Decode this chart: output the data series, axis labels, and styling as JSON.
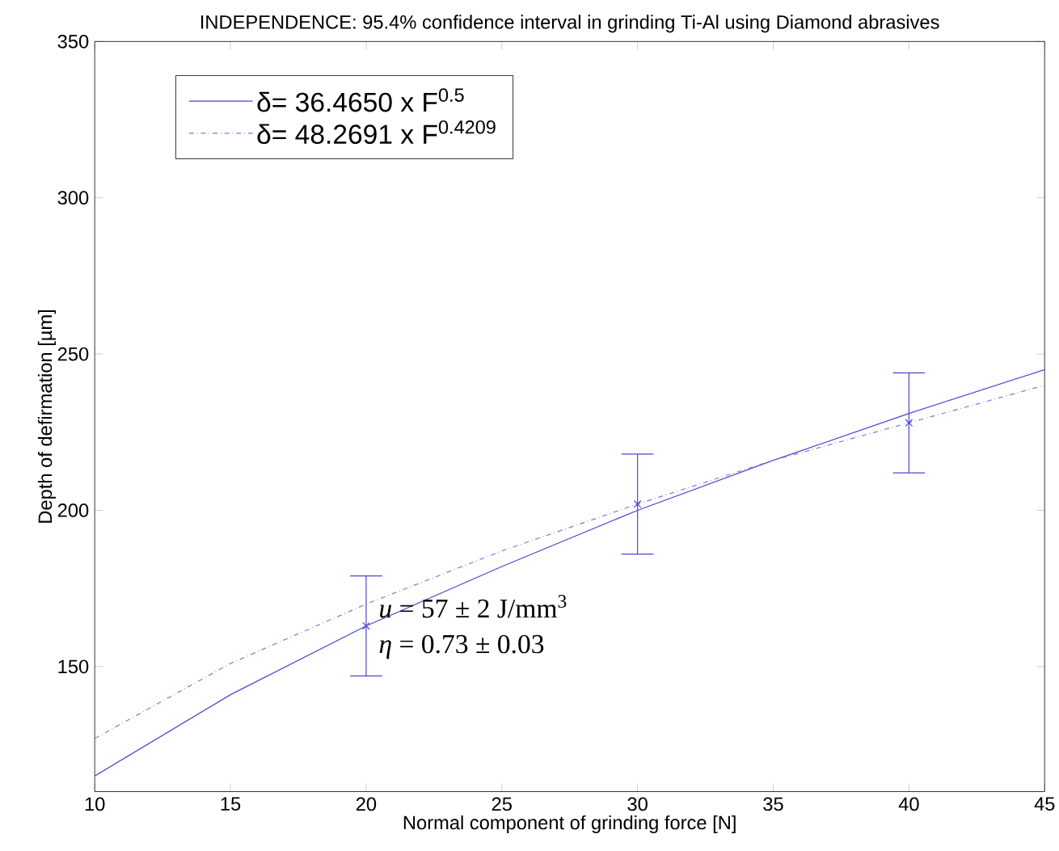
{
  "chart_data": {
    "type": "line",
    "title": "INDEPENDENCE: 95.4% confidence interval in grinding Ti-Al using Diamond abrasives",
    "xlabel": "Normal component of grinding force  [N]",
    "ylabel": "Depth of defirmation  [µm]",
    "xlim": [
      10,
      45
    ],
    "ylim": [
      110,
      350
    ],
    "xticks": [
      10,
      15,
      20,
      25,
      30,
      35,
      40,
      45
    ],
    "yticks": [
      150,
      200,
      250,
      300,
      350
    ],
    "grid": false,
    "legend": "top left",
    "series": [
      {
        "name": "δ= 36.4650 x F$^{0.5}$",
        "color": "#4848d0",
        "line_style": "solid",
        "x": [
          10,
          15,
          20,
          25,
          30,
          35,
          40,
          45
        ],
        "values": [
          115,
          141,
          163,
          182,
          200,
          216,
          231,
          245
        ]
      },
      {
        "name": "δ= 48.2691 x F$^{0.4209}$",
        "color": "#7878e0",
        "line_style": "dashdot",
        "x": [
          10,
          15,
          20,
          25,
          30,
          35,
          40,
          45
        ],
        "values": [
          127,
          151,
          170,
          187,
          202,
          216,
          228,
          240
        ]
      },
      {
        "type": "scatter",
        "color": "#4848d0",
        "marker": "cross",
        "x": [
          20,
          30,
          40
        ],
        "values": [
          163,
          202,
          228
        ],
        "errors": [
          16,
          16,
          16
        ]
      }
    ],
    "annotations": [
      "*u* = 57 ± 2 J/mm$^{3}$",
      "*η* = 0.73 ± 0.03"
    ]
  }
}
